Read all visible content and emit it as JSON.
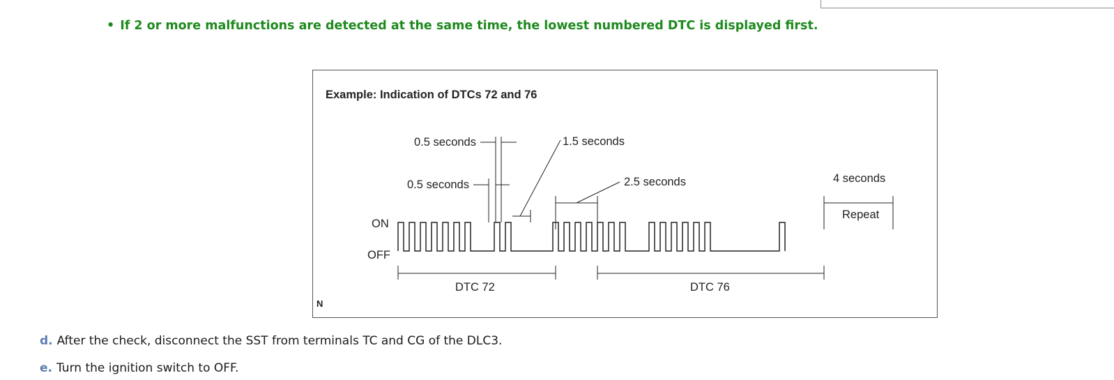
{
  "note": {
    "bullet": "•",
    "text": "If 2 or more malfunctions are detected at the same time, the lowest numbered DTC is displayed first.",
    "color": "#1e8a1e"
  },
  "figure": {
    "title": "Example: Indication of DTCs 72 and 76",
    "labels": {
      "short_off": "0.5 seconds",
      "short_on": "0.5 seconds",
      "digit_gap": "1.5 seconds",
      "code_gap": "2.5 seconds",
      "repeat_gap": "4 seconds",
      "repeat": "Repeat",
      "on": "ON",
      "off": "OFF",
      "dtc_a": "DTC 72",
      "dtc_b": "DTC 76",
      "corner": "N"
    },
    "pulse_sequence": [
      {
        "code": "72",
        "digits": [
          7,
          2
        ]
      },
      {
        "code": "76",
        "digits": [
          7,
          6
        ]
      }
    ]
  },
  "steps": [
    {
      "letter": "d.",
      "text": "After the check, disconnect the SST from terminals TC and CG of the DLC3."
    },
    {
      "letter": "e.",
      "text": "Turn the ignition switch to OFF."
    }
  ],
  "colors": {
    "step_letter": "#5a7db0"
  }
}
